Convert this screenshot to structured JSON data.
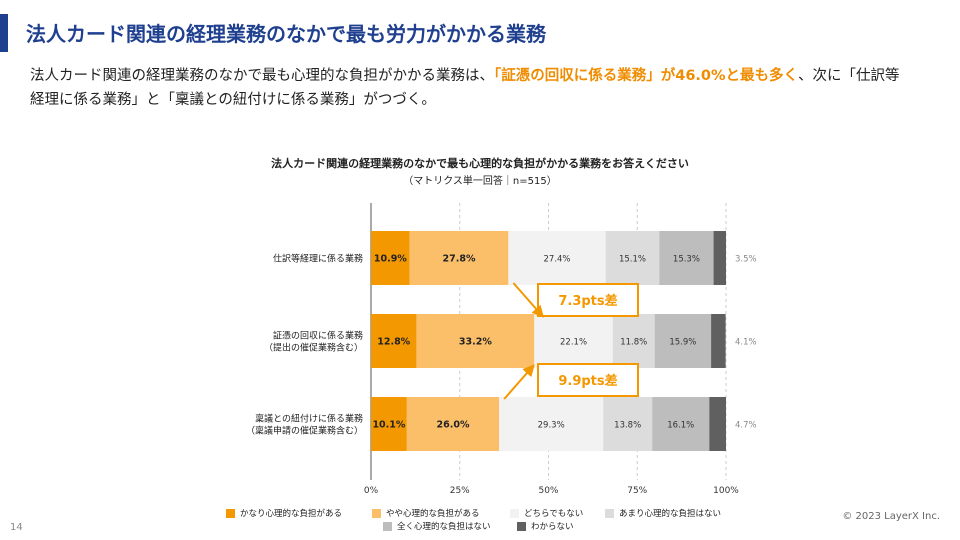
{
  "header": {
    "title": "法人カード関連の経理業務のなかで最も労力がかかる業務"
  },
  "description": {
    "part1": "法人カード関連の経理業務のなかで最も心理的な負担がかかる業務は、",
    "highlight": "「証憑の回収に係る業務」が46.0%と最も多く",
    "part2": "、次に「仕訳等経理に係る業務」と「稟議との紐付けに係る業務」がつづく。"
  },
  "footer": {
    "page_number": "14",
    "copyright": "© 2023 LayerX Inc."
  },
  "chart_data": {
    "type": "bar",
    "orientation": "horizontal-stacked-100",
    "title": "法人カード関連の経理業務のなかで最も心理的な負担がかかる業務をお答えください",
    "subtitle": "（マトリクス単一回答｜n=515）",
    "categories": [
      [
        "仕訳等経理に係る業務"
      ],
      [
        "証憑の回収に係る業務",
        "（提出の催促業務含む）"
      ],
      [
        "稟議との紐付けに係る業務",
        "（稟議申請の催促業務含む）"
      ]
    ],
    "series": [
      {
        "name": "かなり心理的な負担がある",
        "color": "#f39800",
        "text_color": "#222222",
        "bold": true,
        "values": [
          10.9,
          12.8,
          10.1
        ]
      },
      {
        "name": "やや心理的な負担がある",
        "color": "#fbbf6a",
        "text_color": "#222222",
        "bold": true,
        "values": [
          27.8,
          33.2,
          26.0
        ]
      },
      {
        "name": "どちらでもない",
        "color": "#f2f2f2",
        "text_color": "#333333",
        "bold": false,
        "values": [
          27.4,
          22.1,
          29.3
        ]
      },
      {
        "name": "あまり心理的な負担はない",
        "color": "#dcdcdc",
        "text_color": "#333333",
        "bold": false,
        "values": [
          15.1,
          11.8,
          13.8
        ]
      },
      {
        "name": "全く心理的な負担はない",
        "color": "#bdbdbd",
        "text_color": "#333333",
        "bold": false,
        "values": [
          15.3,
          15.9,
          16.1
        ]
      },
      {
        "name": "わからない",
        "color": "#606060",
        "text_color": "#888888",
        "bold": false,
        "outside": true,
        "values": [
          3.5,
          4.1,
          4.7
        ]
      }
    ],
    "labels": [
      [
        "10.9%",
        "27.8%",
        "27.4%",
        "15.1%",
        "15.3%",
        "3.5%"
      ],
      [
        "12.8%",
        "33.2%",
        "22.1%",
        "11.8%",
        "15.9%",
        "4.1%"
      ],
      [
        "10.1%",
        "26.0%",
        "29.3%",
        "13.8%",
        "16.1%",
        "4.7%"
      ]
    ],
    "xlim": [
      0,
      100
    ],
    "xticks": [
      0,
      25,
      50,
      75,
      100
    ],
    "xtick_labels": [
      "0%",
      "25%",
      "50%",
      "75%",
      "100%"
    ],
    "grid": true,
    "annotations": [
      {
        "text": "7.3pts差",
        "from_category": 0,
        "to_category": 1,
        "value": 7.3
      },
      {
        "text": "9.9pts差",
        "from_category": 2,
        "to_category": 1,
        "value": 9.9
      }
    ],
    "annotation_color": "#f39800",
    "legend_position": "bottom"
  }
}
